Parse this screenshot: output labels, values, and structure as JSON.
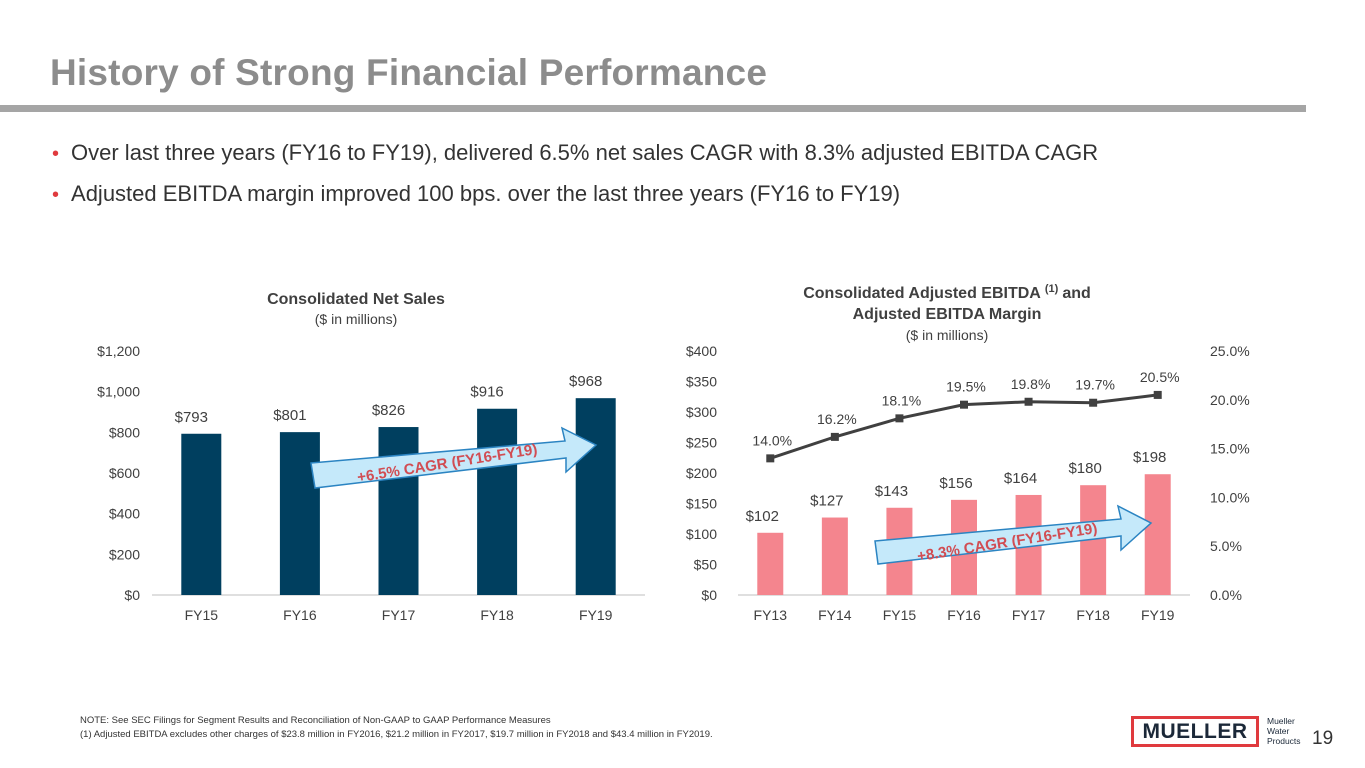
{
  "title": "History of Strong Financial Performance",
  "bullets": [
    "Over last three years (FY16 to FY19), delivered 6.5% net sales CAGR with 8.3% adjusted EBITDA CAGR",
    "Adjusted EBITDA margin improved 100 bps. over the last three years (FY16 to FY19)"
  ],
  "colors": {
    "title": "#8c8c8c",
    "accent_red": "#e03a3e",
    "navy": "#003f5f",
    "pink": "#f4858e",
    "arrow_fill": "#c5e9fa",
    "arrow_stroke": "#2b84c2",
    "line": "#404040"
  },
  "chart_data": [
    {
      "type": "bar",
      "title": "Consolidated Net Sales",
      "subtitle": "($ in millions)",
      "categories": [
        "FY15",
        "FY16",
        "FY17",
        "FY18",
        "FY19"
      ],
      "values": [
        793,
        801,
        826,
        916,
        968
      ],
      "value_labels": [
        "$793",
        "$801",
        "$826",
        "$916",
        "$968"
      ],
      "ylim": [
        0,
        1200
      ],
      "y_ticks": [
        "$0",
        "$200",
        "$400",
        "$600",
        "$800",
        "$1,000",
        "$1,200"
      ],
      "annotation": "+6.5% CAGR (FY16-FY19)",
      "grid": false
    },
    {
      "type": "bar+line",
      "title_line1": "Consolidated Adjusted EBITDA",
      "title_sup": "(1)",
      "title_and": "and",
      "title_line2": "Adjusted EBITDA Margin",
      "subtitle": "($ in millions)",
      "categories": [
        "FY13",
        "FY14",
        "FY15",
        "FY16",
        "FY17",
        "FY18",
        "FY19"
      ],
      "series": [
        {
          "name": "Adjusted EBITDA",
          "type": "bar",
          "axis": "left",
          "values": [
            102,
            127,
            143,
            156,
            164,
            180,
            198
          ],
          "labels": [
            "$102",
            "$127",
            "$143",
            "$156",
            "$164",
            "$180",
            "$198"
          ]
        },
        {
          "name": "Adjusted EBITDA Margin",
          "type": "line",
          "axis": "right",
          "values": [
            14.0,
            16.2,
            18.1,
            19.5,
            19.8,
            19.7,
            20.5
          ],
          "labels": [
            "14.0%",
            "16.2%",
            "18.1%",
            "19.5%",
            "19.8%",
            "19.7%",
            "20.5%"
          ]
        }
      ],
      "ylim_left": [
        0,
        400
      ],
      "y_ticks_left": [
        "$0",
        "$50",
        "$100",
        "$150",
        "$200",
        "$250",
        "$300",
        "$350",
        "$400"
      ],
      "ylim_right": [
        0,
        25
      ],
      "y_ticks_right": [
        "0.0%",
        "5.0%",
        "10.0%",
        "15.0%",
        "20.0%",
        "25.0%"
      ],
      "annotation": "+8.3% CAGR (FY16-FY19)",
      "grid": false
    }
  ],
  "footnotes": [
    "NOTE:  See SEC Filings for Segment Results and Reconciliation of Non-GAAP to GAAP Performance Measures",
    "(1)    Adjusted EBITDA excludes other charges of $23.8 million in FY2016, $21.2 million in FY2017, $19.7 million in FY2018 and $43.4 million in FY2019."
  ],
  "logo": {
    "word": "MUELLER",
    "line1": "Mueller",
    "line2": "Water",
    "line3": "Products"
  },
  "page_number": "19"
}
